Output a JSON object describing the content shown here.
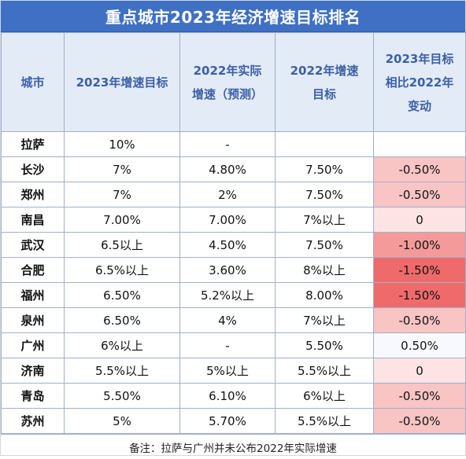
{
  "title": "重点城市2023年经济增速目标排名",
  "headers": [
    "城市",
    "2023年增速目标",
    "2022年实际\n增速（预测）",
    "2022年增速\n目标",
    "2023年目标\n相比2022年\n变动"
  ],
  "rows": [
    {
      "city": "拉萨",
      "target2023": "10%",
      "actual2022": "-",
      "target2022": "",
      "change": "",
      "change_color": "#ffffff"
    },
    {
      "city": "长沙",
      "target2023": "7%",
      "actual2022": "4.80%",
      "target2022": "7.50%",
      "change": "-0.50%",
      "change_color": "#f8c4c4"
    },
    {
      "city": "郑州",
      "target2023": "7%",
      "actual2022": "2%",
      "target2022": "7.50%",
      "change": "-0.50%",
      "change_color": "#f8c4c4"
    },
    {
      "city": "南昌",
      "target2023": "7.00%",
      "actual2022": "7.00%",
      "target2022": "7%以上",
      "change": "0",
      "change_color": "#fde3e3"
    },
    {
      "city": "武汉",
      "target2023": "6.5以上",
      "actual2022": "4.50%",
      "target2022": "7.50%",
      "change": "-1.00%",
      "change_color": "#f49a9a"
    },
    {
      "city": "合肥",
      "target2023": "6.5%以上",
      "actual2022": "3.60%",
      "target2022": "8%以上",
      "change": "-1.50%",
      "change_color": "#ef6b6b"
    },
    {
      "city": "福州",
      "target2023": "6.50%",
      "actual2022": "5.2%以上",
      "target2022": "8.00%",
      "change": "-1.50%",
      "change_color": "#ef6b6b"
    },
    {
      "city": "泉州",
      "target2023": "6.50%",
      "actual2022": "4%",
      "target2022": "7%以上",
      "change": "-0.50%",
      "change_color": "#f8c4c4"
    },
    {
      "city": "广州",
      "target2023": "6%以上",
      "actual2022": "-",
      "target2022": "5.50%",
      "change": "0.50%",
      "change_color": "#f8f9fe"
    },
    {
      "city": "济南",
      "target2023": "5.5%以上",
      "actual2022": "5%以上",
      "target2022": "5.5%以上",
      "change": "0",
      "change_color": "#fde3e3"
    },
    {
      "city": "青岛",
      "target2023": "5.50%",
      "actual2022": "6.10%",
      "target2022": "6%以上",
      "change": "-0.50%",
      "change_color": "#f8c4c4"
    },
    {
      "city": "苏州",
      "target2023": "5%",
      "actual2022": "5.70%",
      "target2022": "5.5%以上",
      "change": "-0.50%",
      "change_color": "#f8c4c4"
    }
  ],
  "note": "备注：拉萨与广州并未公布2022年实际增速"
}
